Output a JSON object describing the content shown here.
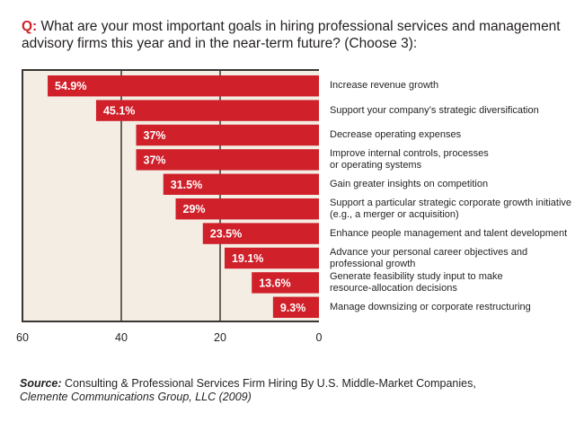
{
  "question": {
    "prefix": "Q:",
    "text": " What are your most important goals in hiring professional services and management advisory firms this year and in the near-term future? (Choose 3):"
  },
  "colors": {
    "bar": "#d0202a",
    "background": "#f3ede3",
    "axis": "#3a3533",
    "accent": "#d0202a"
  },
  "chart_data": {
    "type": "bar",
    "orientation": "horizontal",
    "direction": "right-to-left",
    "title": "What are your most important goals in hiring professional services and management advisory firms this year and in the near-term future? (Choose 3)",
    "xlabel": "",
    "ylabel": "",
    "xlim": [
      0,
      60
    ],
    "x_ticks": [
      "60",
      "40",
      "20",
      "0"
    ],
    "x_tick_values": [
      60,
      40,
      20,
      0
    ],
    "grid": true,
    "legend": "none",
    "categories": [
      "Increase revenue growth",
      "Support your company's strategic diversification",
      "Decrease operating expenses",
      "Improve internal controls, processes or operating systems",
      "Gain greater insights on competition",
      "Support a particular strategic corporate growth initiative (e.g., a merger or acquisition)",
      "Enhance people management and talent development",
      "Advance your personal career objectives and professional growth",
      "Generate feasibility study input to make resource-allocation decisions",
      "Manage downsizing or corporate restructuring"
    ],
    "category_lines": [
      [
        "Increase revenue growth"
      ],
      [
        "Support your company’s strategic diversification"
      ],
      [
        "Decrease operating expenses"
      ],
      [
        "Improve internal controls, processes",
        "or operating systems"
      ],
      [
        "Gain greater insights on competition"
      ],
      [
        "Support a particular strategic corporate growth initiative",
        "(e.g., a merger or acquisition)"
      ],
      [
        "Enhance people management and talent development"
      ],
      [
        "Advance your personal career objectives and",
        "professional growth"
      ],
      [
        "Generate feasibility study input to make",
        "resource-allocation decisions"
      ],
      [
        "Manage downsizing or corporate restructuring"
      ]
    ],
    "values": [
      54.9,
      45.1,
      37,
      37,
      31.5,
      29,
      23.5,
      19.1,
      13.6,
      9.3
    ],
    "data_labels": [
      "54.9%",
      "45.1%",
      "37%",
      "37%",
      "31.5%",
      "29%",
      "23.5%",
      "19.1%",
      "13.6%",
      "9.3%"
    ]
  },
  "source": {
    "label": "Source:",
    "text": " Consulting & Professional Services Firm Hiring By U.S. Middle-Market Companies,",
    "publisher": "Clemente Communications Group, LLC (2009)"
  }
}
